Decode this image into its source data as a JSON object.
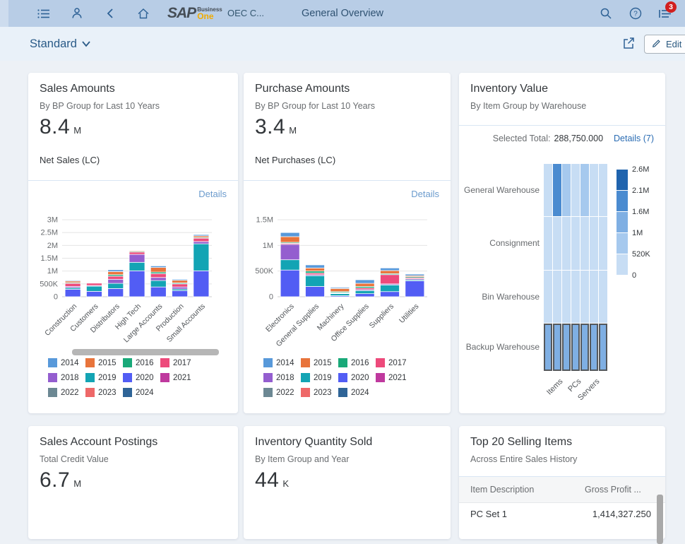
{
  "topbar": {
    "logo_sap": "SAP",
    "logo_business": "Business",
    "logo_one": "One",
    "company": "OEC C...",
    "title": "General Overview",
    "notification_count": "3"
  },
  "toolbar": {
    "view_label": "Standard",
    "edit_label": "Edit"
  },
  "cards": {
    "sales": {
      "title": "Sales Amounts",
      "subtitle": "By BP Group for Last 10 Years",
      "kpi": "8.4",
      "kpi_unit": "M",
      "kpi_caption": "Net Sales (LC)",
      "details_label": "Details"
    },
    "purchase": {
      "title": "Purchase Amounts",
      "subtitle": "By BP Group for Last 10 Years",
      "kpi": "3.4",
      "kpi_unit": "M",
      "kpi_caption": "Net Purchases (LC)",
      "details_label": "Details"
    },
    "inventory": {
      "title": "Inventory Value",
      "subtitle": "By Item Group by Warehouse",
      "selected_total_label": "Selected Total:",
      "selected_total_value": "288,750.000",
      "details_label": "Details (7)"
    },
    "postings": {
      "title": "Sales Account Postings",
      "subtitle": "Total Credit Value",
      "kpi": "6.7",
      "kpi_unit": "M"
    },
    "qty_sold": {
      "title": "Inventory Quantity Sold",
      "subtitle": "By Item Group and Year",
      "kpi": "44",
      "kpi_unit": "K"
    },
    "top20": {
      "title": "Top 20 Selling Items",
      "subtitle": "Across Entire Sales History",
      "columns": [
        "Item Description",
        "Gross Profit ..."
      ],
      "rows": [
        [
          "PC Set 1",
          "1,414,327.250"
        ]
      ]
    }
  },
  "chart_data": [
    {
      "id": "sales-chart",
      "type": "bar",
      "stacked": true,
      "title": "Sales Amounts by BP Group for Last 10 Years",
      "ylabel": "Net Sales (LC)",
      "ylim": [
        0,
        3000000
      ],
      "yticks": [
        {
          "v": 0,
          "label": "0"
        },
        {
          "v": 500000,
          "label": "500K"
        },
        {
          "v": 1000000,
          "label": "1M"
        },
        {
          "v": 1500000,
          "label": "1.5M"
        },
        {
          "v": 2000000,
          "label": "2M"
        },
        {
          "v": 2500000,
          "label": "2.5M"
        },
        {
          "v": 3000000,
          "label": "3M"
        }
      ],
      "categories": [
        "Construction",
        "Customers",
        "Distributors",
        "High Tech",
        "Large Accounts",
        "Production",
        "Small Accounts"
      ],
      "series": [
        {
          "name": "2020",
          "color": "#525DF4",
          "values": [
            290000,
            210000,
            320000,
            1010000,
            380000,
            240000,
            1010000
          ]
        },
        {
          "name": "2019",
          "color": "#13A4B4",
          "values": [
            60000,
            200000,
            200000,
            330000,
            250000,
            60000,
            1050000
          ]
        },
        {
          "name": "2018",
          "color": "#945ECF",
          "values": [
            50000,
            30000,
            160000,
            310000,
            120000,
            80000,
            90000
          ]
        },
        {
          "name": "2017",
          "color": "#ED4A7B",
          "values": [
            120000,
            90000,
            120000,
            90000,
            150000,
            120000,
            130000
          ]
        },
        {
          "name": "2016",
          "color": "#19A979",
          "values": [
            30000,
            20000,
            60000,
            30000,
            60000,
            40000,
            30000
          ]
        },
        {
          "name": "2015",
          "color": "#E8743B",
          "values": [
            60000,
            20000,
            120000,
            30000,
            180000,
            100000,
            60000
          ]
        },
        {
          "name": "2014",
          "color": "#5899DA",
          "values": [
            30000,
            10000,
            70000,
            20000,
            60000,
            40000,
            50000
          ]
        }
      ],
      "legend": [
        {
          "label": "2014",
          "color": "#5899DA"
        },
        {
          "label": "2015",
          "color": "#E8743B"
        },
        {
          "label": "2016",
          "color": "#19A979"
        },
        {
          "label": "2017",
          "color": "#ED4A7B"
        },
        {
          "label": "2018",
          "color": "#945ECF"
        },
        {
          "label": "2019",
          "color": "#13A4B4"
        },
        {
          "label": "2020",
          "color": "#525DF4"
        },
        {
          "label": "2021",
          "color": "#BF399E"
        },
        {
          "label": "2022",
          "color": "#6C8893"
        },
        {
          "label": "2023",
          "color": "#EE6868"
        },
        {
          "label": "2024",
          "color": "#2F6497"
        }
      ],
      "legend_position": "bottom",
      "grid": true
    },
    {
      "id": "purchase-chart",
      "type": "bar",
      "stacked": true,
      "title": "Purchase Amounts by BP Group for Last 10 Years",
      "ylabel": "Net Purchases (LC)",
      "ylim": [
        0,
        1500000
      ],
      "yticks": [
        {
          "v": 0,
          "label": "0"
        },
        {
          "v": 500000,
          "label": "500K"
        },
        {
          "v": 1000000,
          "label": "1M"
        },
        {
          "v": 1500000,
          "label": "1.5M"
        }
      ],
      "categories": [
        "Electronics",
        "General Supplies",
        "Machinery",
        "Office Supplies",
        "Suppliers",
        "Utilities"
      ],
      "series": [
        {
          "name": "2020",
          "color": "#525DF4",
          "values": [
            520000,
            200000,
            20000,
            60000,
            100000,
            310000
          ]
        },
        {
          "name": "2019",
          "color": "#13A4B4",
          "values": [
            200000,
            210000,
            40000,
            60000,
            130000,
            20000
          ]
        },
        {
          "name": "2018",
          "color": "#945ECF",
          "values": [
            300000,
            20000,
            10000,
            20000,
            20000,
            20000
          ]
        },
        {
          "name": "2017",
          "color": "#ED4A7B",
          "values": [
            20000,
            30000,
            10000,
            30000,
            180000,
            20000
          ]
        },
        {
          "name": "2016",
          "color": "#19A979",
          "values": [
            20000,
            40000,
            20000,
            30000,
            20000,
            20000
          ]
        },
        {
          "name": "2015",
          "color": "#E8743B",
          "values": [
            110000,
            60000,
            60000,
            60000,
            60000,
            20000
          ]
        },
        {
          "name": "2014",
          "color": "#5899DA",
          "values": [
            80000,
            60000,
            20000,
            70000,
            50000,
            30000
          ]
        }
      ],
      "legend": [
        {
          "label": "2014",
          "color": "#5899DA"
        },
        {
          "label": "2015",
          "color": "#E8743B"
        },
        {
          "label": "2016",
          "color": "#19A979"
        },
        {
          "label": "2017",
          "color": "#ED4A7B"
        },
        {
          "label": "2018",
          "color": "#945ECF"
        },
        {
          "label": "2019",
          "color": "#13A4B4"
        },
        {
          "label": "2020",
          "color": "#525DF4"
        },
        {
          "label": "2021",
          "color": "#BF399E"
        },
        {
          "label": "2022",
          "color": "#6C8893"
        },
        {
          "label": "2023",
          "color": "#EE6868"
        },
        {
          "label": "2024",
          "color": "#2F6497"
        }
      ],
      "legend_position": "bottom",
      "grid": true
    },
    {
      "id": "inventory-heatmap",
      "type": "heatmap",
      "title": "Inventory Value by Item Group by Warehouse",
      "rows": [
        "General Warehouse",
        "Consignment",
        "Bin Warehouse",
        "Backup Warehouse"
      ],
      "columns": [
        "",
        "Items",
        "",
        "PCs",
        "",
        "Servers",
        ""
      ],
      "values_unit": "M",
      "values": [
        [
          0.45,
          1.8,
          0.95,
          0.5,
          0.85,
          0.5,
          0.45
        ],
        [
          0.3,
          0.3,
          0.3,
          0.3,
          0.3,
          0.3,
          0.3
        ],
        [
          0.35,
          0.35,
          0.35,
          0.35,
          0.35,
          0.35,
          0.35
        ],
        [
          1.1,
          1.1,
          1.1,
          1.1,
          1.1,
          1.1,
          1.1
        ]
      ],
      "selected_row": "Backup Warehouse",
      "color_thresholds": [
        0.52,
        1.0,
        1.6,
        2.1,
        2.6
      ],
      "color_scale": [
        "#c7ddf4",
        "#a6c9ee",
        "#7fafe3",
        "#4a8bd0",
        "#2064ae"
      ],
      "legend_stops": [
        "2.6M",
        "2.1M",
        "1.6M",
        "1M",
        "520K",
        "0"
      ],
      "legend_position": "right",
      "selected_border_color": "#54585c"
    }
  ]
}
